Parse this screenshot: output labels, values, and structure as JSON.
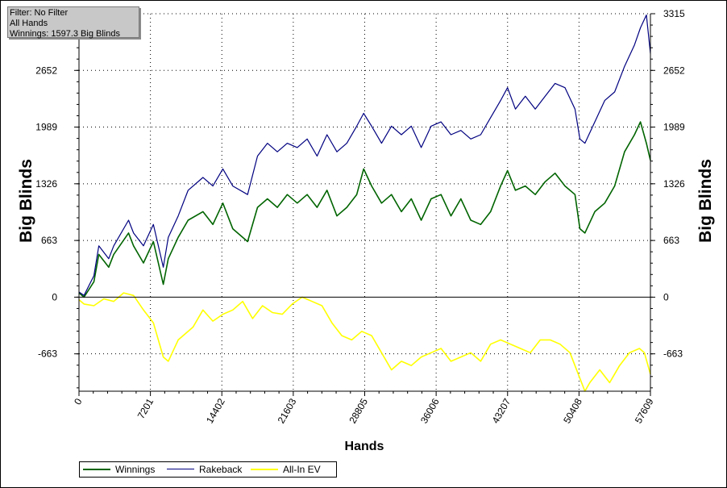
{
  "info": {
    "filter": "Filter: No Filter",
    "hands": "All Hands",
    "winnings": "Winnings: 1597.3 Big Blinds"
  },
  "chart_data": {
    "type": "line",
    "xlabel": "Hands",
    "ylabel": "Big Blinds",
    "xlim": [
      0,
      57609
    ],
    "ylim": [
      -1100,
      3315
    ],
    "x_ticks": [
      "0",
      "7201",
      "14402",
      "21603",
      "28805",
      "36006",
      "43207",
      "50408",
      "57609"
    ],
    "y_ticks_left": [
      "2652",
      "1989",
      "1326",
      "663",
      "0",
      "-663"
    ],
    "y_ticks_right": [
      "3315",
      "2652",
      "1989",
      "1326",
      "663",
      "0",
      "-663"
    ],
    "grid": true,
    "legend_position": "bottom-left",
    "series": [
      {
        "name": "Winnings",
        "color": "#006400",
        "x": [
          0,
          500,
          1500,
          2000,
          3000,
          3500,
          5000,
          5500,
          6500,
          7500,
          8500,
          9000,
          10000,
          11000,
          12500,
          13500,
          14500,
          15500,
          17000,
          18000,
          19000,
          20000,
          21000,
          22000,
          23000,
          24000,
          25000,
          26000,
          27000,
          28000,
          28700,
          29500,
          30500,
          31500,
          32500,
          33500,
          34500,
          35500,
          36500,
          37500,
          38500,
          39500,
          40500,
          41500,
          42500,
          43200,
          44000,
          45000,
          46000,
          47000,
          48000,
          49000,
          50000,
          50500,
          51000,
          52000,
          53000,
          54000,
          55000,
          56000,
          56600,
          57200,
          57609
        ],
        "values": [
          50,
          0,
          180,
          500,
          350,
          500,
          750,
          600,
          400,
          650,
          150,
          450,
          700,
          900,
          1000,
          850,
          1100,
          800,
          650,
          1050,
          1150,
          1050,
          1200,
          1100,
          1200,
          1050,
          1250,
          950,
          1050,
          1200,
          1500,
          1300,
          1100,
          1200,
          1000,
          1150,
          900,
          1150,
          1200,
          950,
          1150,
          900,
          850,
          1000,
          1300,
          1480,
          1250,
          1300,
          1200,
          1350,
          1450,
          1300,
          1200,
          800,
          750,
          1000,
          1100,
          1300,
          1700,
          1900,
          2050,
          1800,
          1600
        ]
      },
      {
        "name": "Rakeback",
        "color": "#000080",
        "x": [
          0,
          500,
          1500,
          2000,
          3000,
          3500,
          5000,
          5500,
          6500,
          7500,
          8500,
          9000,
          10000,
          11000,
          12500,
          13500,
          14500,
          15500,
          17000,
          18000,
          19000,
          20000,
          21000,
          22000,
          23000,
          24000,
          25000,
          26000,
          27000,
          28000,
          28700,
          29500,
          30500,
          31500,
          32500,
          33500,
          34500,
          35500,
          36500,
          37500,
          38500,
          39500,
          40500,
          41500,
          42500,
          43200,
          44000,
          45000,
          46000,
          47000,
          48000,
          49000,
          50000,
          50500,
          51000,
          52000,
          53000,
          54000,
          55000,
          56000,
          56600,
          57200,
          57609
        ],
        "values": [
          60,
          20,
          250,
          600,
          450,
          600,
          900,
          750,
          600,
          850,
          350,
          700,
          950,
          1250,
          1400,
          1300,
          1500,
          1300,
          1200,
          1650,
          1800,
          1700,
          1800,
          1750,
          1850,
          1650,
          1900,
          1700,
          1800,
          2000,
          2150,
          2000,
          1800,
          2000,
          1900,
          2000,
          1750,
          2000,
          2050,
          1900,
          1950,
          1850,
          1900,
          2100,
          2300,
          2450,
          2200,
          2350,
          2200,
          2350,
          2500,
          2450,
          2200,
          1850,
          1800,
          2050,
          2300,
          2400,
          2700,
          2950,
          3150,
          3300,
          2850
        ]
      },
      {
        "name": "All-In EV",
        "color": "#ffff00",
        "x": [
          0,
          500,
          1500,
          2500,
          3500,
          4500,
          5500,
          6500,
          7500,
          8500,
          9000,
          10000,
          11500,
          12500,
          13500,
          14500,
          15500,
          16500,
          17500,
          18500,
          19500,
          20500,
          21500,
          22500,
          23500,
          24500,
          25500,
          26500,
          27500,
          28500,
          29500,
          30500,
          31500,
          32500,
          33500,
          34500,
          35500,
          36500,
          37500,
          38500,
          39500,
          40500,
          41500,
          42500,
          43500,
          44500,
          45500,
          46500,
          47500,
          48500,
          49500,
          50500,
          51000,
          51500,
          52500,
          53500,
          54500,
          55500,
          56500,
          57000,
          57609
        ],
        "values": [
          -30,
          -80,
          -100,
          -20,
          -50,
          50,
          20,
          -150,
          -300,
          -700,
          -750,
          -500,
          -350,
          -150,
          -280,
          -200,
          -150,
          -50,
          -250,
          -100,
          -180,
          -200,
          -80,
          0,
          -50,
          -100,
          -300,
          -450,
          -500,
          -400,
          -450,
          -650,
          -850,
          -750,
          -800,
          -700,
          -650,
          -600,
          -750,
          -700,
          -650,
          -750,
          -550,
          -500,
          -550,
          -600,
          -650,
          -500,
          -500,
          -550,
          -650,
          -950,
          -1100,
          -1000,
          -850,
          -1000,
          -800,
          -650,
          -600,
          -650,
          -900
        ]
      }
    ]
  }
}
